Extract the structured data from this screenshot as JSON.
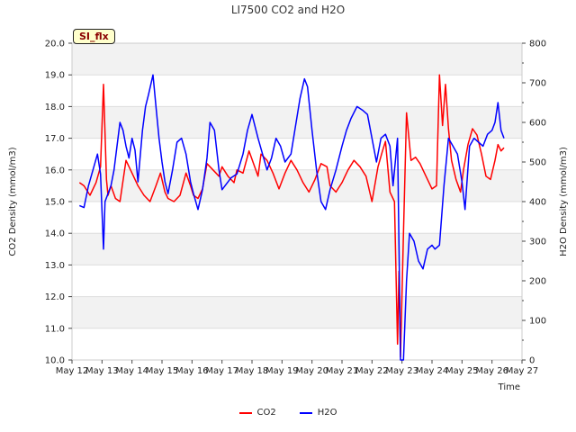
{
  "chart_data": {
    "type": "line",
    "title": "LI7500 CO2 and H2O",
    "xlabel": "Time",
    "ylabel_left": "CO2 Density (mmol/m3)",
    "ylabel_right": "H2O Density (mmol/m3)",
    "x_ticks": [
      "May 12",
      "May 13",
      "May 14",
      "May 15",
      "May 16",
      "May 17",
      "May 18",
      "May 19",
      "May 20",
      "May 21",
      "May 22",
      "May 23",
      "May 24",
      "May 25",
      "May 26",
      "May 27"
    ],
    "xlim": [
      12,
      27
    ],
    "ylim_left": [
      10.0,
      20.0
    ],
    "y_ticks_left": [
      "10.0",
      "11.0",
      "12.0",
      "13.0",
      "14.0",
      "15.0",
      "16.0",
      "17.0",
      "18.0",
      "19.0",
      "20.0"
    ],
    "ylim_right": [
      0,
      800
    ],
    "y_ticks_right": [
      "0",
      "100",
      "200",
      "300",
      "400",
      "500",
      "600",
      "700",
      "800"
    ],
    "grid": true,
    "legend_position": "bottom-center",
    "series": [
      {
        "name": "CO2",
        "axis": "left",
        "color": "#ff0000",
        "x": [
          12.25,
          12.4,
          12.6,
          12.8,
          12.95,
          13.05,
          13.15,
          13.2,
          13.3,
          13.45,
          13.6,
          13.8,
          14.0,
          14.2,
          14.4,
          14.6,
          14.8,
          14.95,
          15.1,
          15.2,
          15.4,
          15.6,
          15.8,
          15.95,
          16.05,
          16.2,
          16.35,
          16.5,
          16.7,
          16.9,
          17.0,
          17.2,
          17.4,
          17.5,
          17.7,
          17.9,
          18.05,
          18.2,
          18.3,
          18.5,
          18.7,
          18.9,
          19.1,
          19.3,
          19.5,
          19.7,
          19.9,
          20.1,
          20.3,
          20.5,
          20.6,
          20.8,
          21.0,
          21.2,
          21.4,
          21.6,
          21.8,
          22.0,
          22.2,
          22.35,
          22.45,
          22.6,
          22.75,
          22.85,
          22.9,
          22.95,
          23.05,
          23.15,
          23.3,
          23.45,
          23.6,
          23.8,
          24.0,
          24.15,
          24.25,
          24.35,
          24.45,
          24.55,
          24.65,
          24.8,
          24.95,
          25.05,
          25.2,
          25.35,
          25.5,
          25.65,
          25.8,
          25.95,
          26.1,
          26.2,
          26.3,
          26.4
        ],
        "y": [
          15.6,
          15.5,
          15.2,
          15.6,
          16.1,
          18.7,
          15.7,
          15.2,
          15.5,
          15.1,
          15.0,
          16.3,
          15.9,
          15.5,
          15.2,
          15.0,
          15.5,
          15.9,
          15.3,
          15.1,
          15.0,
          15.2,
          15.9,
          15.5,
          15.2,
          15.1,
          15.4,
          16.2,
          16.0,
          15.8,
          16.1,
          15.8,
          15.6,
          16.0,
          15.9,
          16.6,
          16.2,
          15.8,
          16.5,
          16.3,
          15.9,
          15.4,
          15.9,
          16.3,
          16.0,
          15.6,
          15.3,
          15.7,
          16.2,
          16.1,
          15.5,
          15.3,
          15.6,
          16.0,
          16.3,
          16.1,
          15.8,
          15.0,
          16.1,
          16.6,
          16.9,
          15.3,
          15.0,
          10.5,
          12.8,
          10.1,
          14.0,
          17.8,
          16.3,
          16.4,
          16.2,
          15.8,
          15.4,
          15.5,
          19.0,
          17.4,
          18.7,
          17.3,
          16.3,
          15.7,
          15.3,
          16.0,
          16.8,
          17.3,
          17.1,
          16.5,
          15.8,
          15.7,
          16.3,
          16.8,
          16.6,
          16.7
        ]
      },
      {
        "name": "H2O",
        "axis": "right",
        "color": "#0000ff",
        "x": [
          12.25,
          12.4,
          12.55,
          12.7,
          12.85,
          12.95,
          13.05,
          13.1,
          13.2,
          13.3,
          13.4,
          13.5,
          13.6,
          13.7,
          13.8,
          13.9,
          14.0,
          14.1,
          14.2,
          14.35,
          14.45,
          14.55,
          14.7,
          14.8,
          14.9,
          15.0,
          15.1,
          15.2,
          15.35,
          15.5,
          15.65,
          15.8,
          15.95,
          16.05,
          16.2,
          16.35,
          16.5,
          16.6,
          16.75,
          16.9,
          17.0,
          17.1,
          17.3,
          17.5,
          17.7,
          17.85,
          18.0,
          18.2,
          18.35,
          18.5,
          18.65,
          18.8,
          18.95,
          19.1,
          19.3,
          19.45,
          19.6,
          19.75,
          19.85,
          20.0,
          20.15,
          20.3,
          20.45,
          20.6,
          20.8,
          21.0,
          21.15,
          21.3,
          21.5,
          21.7,
          21.85,
          22.0,
          22.15,
          22.3,
          22.45,
          22.6,
          22.7,
          22.85,
          22.9,
          22.95,
          23.05,
          23.15,
          23.25,
          23.4,
          23.55,
          23.7,
          23.85,
          24.0,
          24.1,
          24.25,
          24.4,
          24.55,
          24.7,
          24.85,
          25.0,
          25.1,
          25.25,
          25.4,
          25.55,
          25.7,
          25.85,
          26.0,
          26.1,
          26.2,
          26.3,
          26.4
        ],
        "y": [
          390,
          385,
          440,
          480,
          520,
          470,
          280,
          400,
          420,
          440,
          480,
          540,
          600,
          580,
          540,
          510,
          560,
          530,
          450,
          580,
          640,
          670,
          720,
          640,
          560,
          500,
          450,
          420,
          480,
          550,
          560,
          520,
          450,
          420,
          380,
          430,
          510,
          600,
          580,
          480,
          430,
          440,
          460,
          470,
          520,
          580,
          620,
          560,
          520,
          480,
          510,
          560,
          540,
          500,
          520,
          590,
          660,
          710,
          690,
          580,
          480,
          400,
          380,
          430,
          480,
          540,
          580,
          610,
          640,
          630,
          620,
          560,
          500,
          560,
          570,
          540,
          440,
          560,
          290,
          0,
          0,
          200,
          320,
          300,
          250,
          230,
          280,
          290,
          280,
          290,
          440,
          560,
          540,
          520,
          450,
          380,
          540,
          560,
          550,
          540,
          570,
          580,
          600,
          650,
          580,
          560
        ]
      }
    ]
  },
  "badge": {
    "label": "SI_flx"
  }
}
